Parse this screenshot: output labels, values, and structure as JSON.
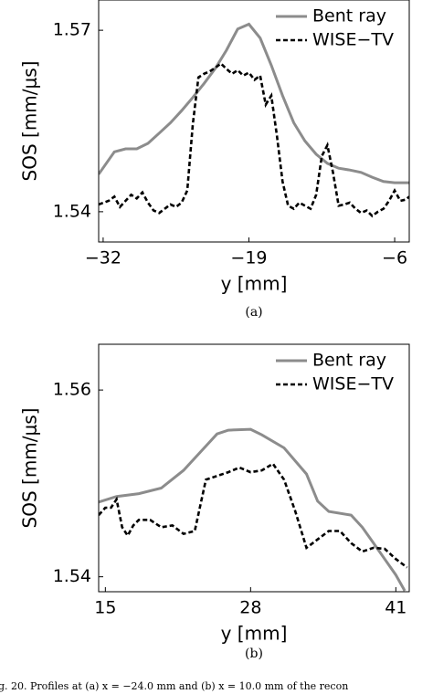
{
  "chart_data": [
    {
      "type": "line",
      "xlabel": "y [mm]",
      "ylabel": "SOS [mm/μs]",
      "xlim": [
        -32.4,
        -4.7
      ],
      "ylim": [
        1.535,
        1.575
      ],
      "xticks": [
        {
          "value": -32,
          "label": "−32"
        },
        {
          "value": -19,
          "label": "−19"
        },
        {
          "value": -6,
          "label": "−6"
        }
      ],
      "yticks": [
        1.54,
        1.57
      ],
      "legend": "upper right",
      "series": [
        {
          "name": "Bent ray",
          "color": "#8c8c8c",
          "style": "solid",
          "x": [
            -32.4,
            -31,
            -30,
            -29,
            -28,
            -27,
            -26,
            -25,
            -24,
            -23,
            -22,
            -21,
            -20,
            -19,
            -18,
            -17,
            -16,
            -15,
            -14,
            -13,
            -12,
            -11,
            -10,
            -9,
            -8,
            -7,
            -6,
            -4.7
          ],
          "values": [
            1.5462,
            1.5499,
            1.5504,
            1.5504,
            1.5513,
            1.553,
            1.5547,
            1.5567,
            1.5589,
            1.5612,
            1.5637,
            1.5667,
            1.5702,
            1.571,
            1.5687,
            1.5642,
            1.5592,
            1.5547,
            1.5517,
            1.5495,
            1.548,
            1.5472,
            1.5469,
            1.5465,
            1.5457,
            1.545,
            1.5448,
            1.5448
          ]
        },
        {
          "name": "WISE−TV",
          "color": "#000000",
          "style": "dashed",
          "x": [
            -32.4,
            -31.5,
            -31,
            -30.5,
            -30,
            -29.5,
            -29,
            -28.5,
            -28,
            -27.5,
            -27,
            -26.5,
            -26,
            -25.5,
            -25,
            -24.5,
            -24,
            -23.5,
            -23,
            -22.5,
            -22,
            -21.5,
            -21,
            -20.5,
            -20,
            -19.5,
            -19,
            -18.5,
            -18,
            -17.5,
            -17,
            -16.5,
            -16,
            -15.5,
            -15,
            -14.5,
            -14,
            -13.5,
            -13,
            -12.5,
            -12,
            -11.5,
            -11,
            -10.5,
            -10,
            -9.5,
            -9,
            -8.5,
            -8,
            -7.5,
            -7,
            -6.5,
            -6,
            -5.5,
            -5,
            -4.7
          ],
          "values": [
            1.5412,
            1.5418,
            1.5425,
            1.5408,
            1.5418,
            1.5428,
            1.5422,
            1.5432,
            1.5415,
            1.5402,
            1.5398,
            1.5405,
            1.5412,
            1.5408,
            1.5415,
            1.5435,
            1.5545,
            1.5622,
            1.5628,
            1.5632,
            1.5638,
            1.5645,
            1.5636,
            1.5628,
            1.5634,
            1.5625,
            1.563,
            1.5618,
            1.5625,
            1.5577,
            1.5592,
            1.5525,
            1.545,
            1.541,
            1.5405,
            1.5415,
            1.541,
            1.5405,
            1.5428,
            1.5492,
            1.551,
            1.5465,
            1.541,
            1.5412,
            1.5415,
            1.5405,
            1.5398,
            1.5402,
            1.5393,
            1.54,
            1.5405,
            1.5418,
            1.5435,
            1.5418,
            1.542,
            1.5425
          ]
        }
      ]
    },
    {
      "type": "line",
      "xlabel": "y [mm]",
      "ylabel": "SOS [mm/μs]",
      "xlim": [
        14.4,
        42.2
      ],
      "ylim": [
        1.5384,
        1.5649
      ],
      "xticks": [
        15,
        28,
        41
      ],
      "yticks": [
        1.54,
        1.56
      ],
      "legend": "upper right",
      "series": [
        {
          "name": "Bent ray",
          "color": "#8c8c8c",
          "style": "solid",
          "x": [
            14.4,
            16,
            18,
            20,
            22,
            24,
            25,
            26,
            28,
            29,
            31,
            33,
            34,
            35,
            37,
            38,
            39,
            40,
            41,
            41.8
          ],
          "values": [
            1.548,
            1.5486,
            1.5489,
            1.5495,
            1.5514,
            1.554,
            1.5553,
            1.5557,
            1.5558,
            1.5552,
            1.5538,
            1.551,
            1.5481,
            1.547,
            1.5466,
            1.5453,
            1.5436,
            1.5419,
            1.5402,
            1.5385
          ]
        },
        {
          "name": "WISE−TV",
          "color": "#000000",
          "style": "dashed",
          "x": [
            14.4,
            15,
            15.5,
            16,
            16.5,
            17,
            17.5,
            18,
            19,
            20,
            21,
            22,
            23,
            24,
            25,
            26,
            27,
            28,
            29,
            30,
            31,
            32,
            33,
            34,
            35,
            36,
            37,
            38,
            39,
            40,
            41,
            42
          ],
          "values": [
            1.5466,
            1.5474,
            1.5474,
            1.5483,
            1.5453,
            1.5444,
            1.5455,
            1.5461,
            1.5461,
            1.5453,
            1.5455,
            1.5446,
            1.5449,
            1.5504,
            1.5508,
            1.5512,
            1.5517,
            1.5512,
            1.5514,
            1.5521,
            1.5504,
            1.547,
            1.5431,
            1.544,
            1.5449,
            1.5449,
            1.5436,
            1.5427,
            1.5431,
            1.543,
            1.5419,
            1.541
          ]
        }
      ]
    }
  ],
  "panel_labels": [
    "(a)",
    "(b)"
  ],
  "caption": "g. 20. Profiles at (a) x = −24.0  mm and (b) x = 10.0  mm of the recon"
}
